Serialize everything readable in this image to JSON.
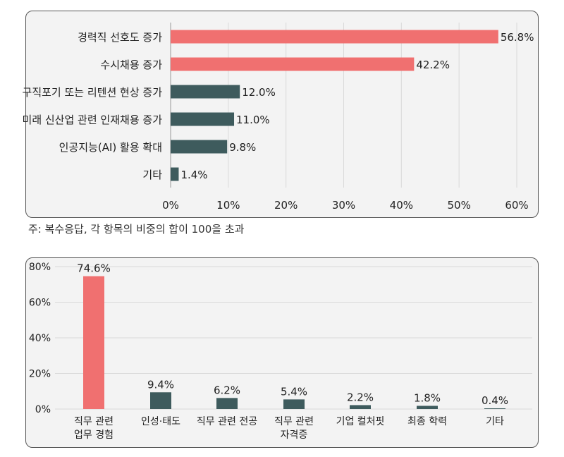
{
  "colors": {
    "accent": "#f07070",
    "dark": "#3e5b5d",
    "grid": "#d9d9d9"
  },
  "note": "주: 복수응답, 각 항목의 비중의 합이 100을 초과",
  "chart_data": [
    {
      "type": "bar",
      "orientation": "horizontal",
      "categories": [
        "경력직 선호도 증가",
        "수시채용 증가",
        "구직포기 또는 리텐션 현상 증가",
        "미래 신산업 관련 인재채용 증가",
        "인공지능(AI) 활용 확대",
        "기타"
      ],
      "values": [
        56.8,
        42.2,
        12.0,
        11.0,
        9.8,
        1.4
      ],
      "value_labels": [
        "56.8%",
        "42.2%",
        "12.0%",
        "11.0%",
        "9.8%",
        "1.4%"
      ],
      "highlight": [
        true,
        true,
        false,
        false,
        false,
        false
      ],
      "xlim": [
        0,
        60
      ],
      "ticks": [
        0,
        10,
        20,
        30,
        40,
        50,
        60
      ],
      "tick_labels": [
        "0%",
        "10%",
        "20%",
        "30%",
        "40%",
        "50%",
        "60%"
      ],
      "grid": true,
      "title": "",
      "xlabel": "",
      "ylabel": ""
    },
    {
      "type": "bar",
      "orientation": "vertical",
      "categories": [
        [
          "직무 관련",
          "업무 경험"
        ],
        [
          "인성·태도"
        ],
        [
          "직무 관련 전공"
        ],
        [
          "직무 관련",
          "자격증"
        ],
        [
          "기업 컬처핏"
        ],
        [
          "최종 학력"
        ],
        [
          "기타"
        ]
      ],
      "values": [
        74.6,
        9.4,
        6.2,
        5.4,
        2.2,
        1.8,
        0.4
      ],
      "value_labels": [
        "74.6%",
        "9.4%",
        "6.2%",
        "5.4%",
        "2.2%",
        "1.8%",
        "0.4%"
      ],
      "highlight": [
        true,
        false,
        false,
        false,
        false,
        false,
        false
      ],
      "ylim": [
        0,
        80
      ],
      "ticks": [
        0,
        20,
        40,
        60,
        80
      ],
      "tick_labels": [
        "0%",
        "20%",
        "40%",
        "60%",
        "80%"
      ],
      "grid": true,
      "title": "",
      "xlabel": "",
      "ylabel": ""
    }
  ]
}
